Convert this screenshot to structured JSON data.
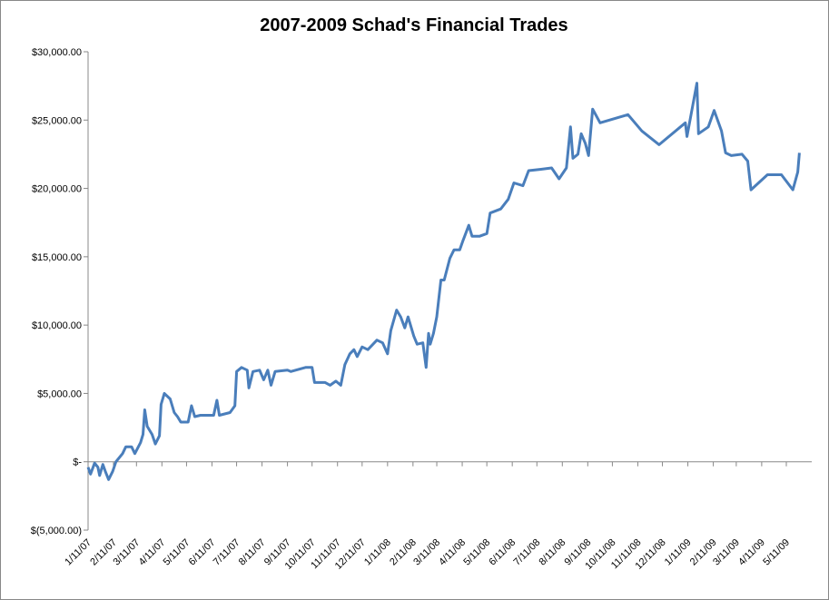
{
  "chart_data": {
    "type": "line",
    "title": "2007-2009 Schad's Financial Trades",
    "xlim": [
      "1/11/07",
      "6/11/09"
    ],
    "xticks": [
      "1/11/07",
      "2/11/07",
      "3/11/07",
      "4/11/07",
      "5/11/07",
      "6/11/07",
      "7/11/07",
      "8/11/07",
      "9/11/07",
      "10/11/07",
      "11/11/07",
      "12/11/07",
      "1/11/08",
      "2/11/08",
      "3/11/08",
      "4/11/08",
      "5/11/08",
      "6/11/08",
      "7/11/08",
      "8/11/08",
      "9/11/08",
      "10/11/08",
      "11/11/08",
      "12/11/08",
      "1/11/09",
      "2/11/09",
      "3/11/09",
      "4/11/09",
      "5/11/09"
    ],
    "ylim": [
      -5000,
      30000
    ],
    "yticks": [
      {
        "value": -5000,
        "label": "$(5,000.00)"
      },
      {
        "value": 0,
        "label": "$-"
      },
      {
        "value": 5000,
        "label": "$5,000.00"
      },
      {
        "value": 10000,
        "label": "$10,000.00"
      },
      {
        "value": 15000,
        "label": "$15,000.00"
      },
      {
        "value": 20000,
        "label": "$20,000.00"
      },
      {
        "value": 25000,
        "label": "$25,000.00"
      },
      {
        "value": 30000,
        "label": "$30,000.00"
      }
    ],
    "grid": false,
    "series": [
      {
        "color": "#4a7ebb",
        "x": [
          "1/11/07",
          "1/14/07",
          "1/19/07",
          "1/23/07",
          "1/25/07",
          "1/29/07",
          "2/1/07",
          "2/5/07",
          "2/10/07",
          "2/14/07",
          "2/22/07",
          "2/26/07",
          "3/5/07",
          "3/9/07",
          "3/16/07",
          "3/19/07",
          "3/21/07",
          "3/24/07",
          "3/30/07",
          "4/3/07",
          "4/8/07",
          "4/10/07",
          "4/14/07",
          "4/21/07",
          "4/26/07",
          "4/30/07",
          "5/4/07",
          "5/13/07",
          "5/17/07",
          "5/21/07",
          "5/28/07",
          "6/13/07",
          "6/17/07",
          "6/20/07",
          "7/3/07",
          "7/9/07",
          "7/11/07",
          "7/17/07",
          "7/24/07",
          "7/26/07",
          "7/31/07",
          "8/8/07",
          "8/13/07",
          "8/18/07",
          "8/22/07",
          "8/27/07",
          "9/11/07",
          "9/15/07",
          "10/3/07",
          "10/11/07",
          "10/14/07",
          "10/27/07",
          "11/2/07",
          "11/9/07",
          "11/15/07",
          "11/20/07",
          "11/26/07",
          "12/1/07",
          "12/5/07",
          "12/11/07",
          "12/18/07",
          "12/29/07",
          "1/5/08",
          "1/11/08",
          "1/15/08",
          "1/22/08",
          "1/27/08",
          "2/1/08",
          "2/5/08",
          "2/12/08",
          "2/16/08",
          "2/23/08",
          "2/27/08",
          "3/1/08",
          "3/3/08",
          "3/7/08",
          "3/11/08",
          "3/16/08",
          "3/20/08",
          "3/27/08",
          "4/1/08",
          "4/8/08",
          "4/12/08",
          "4/19/08",
          "4/23/08",
          "5/2/08",
          "5/11/08",
          "5/15/08",
          "5/28/08",
          "6/6/08",
          "6/13/08",
          "6/24/08",
          "7/1/08",
          "7/16/08",
          "7/29/08",
          "8/7/08",
          "8/16/08",
          "8/21/08",
          "8/24/08",
          "8/30/08",
          "9/3/08",
          "9/8/08",
          "9/12/08",
          "9/17/08",
          "9/26/08",
          "10/30/08",
          "11/16/08",
          "12/7/08",
          "1/8/09",
          "1/10/09",
          "1/22/09",
          "1/24/09",
          "2/5/09",
          "2/12/09",
          "2/21/09",
          "2/26/09",
          "3/5/09",
          "3/18/09",
          "3/25/09",
          "3/29/09",
          "4/18/09",
          "5/5/09",
          "5/19/09",
          "5/25/09",
          "5/27/09"
        ],
        "values": [
          -400,
          -900,
          -100,
          -400,
          -1000,
          -200,
          -700,
          -1300,
          -700,
          0,
          600,
          1100,
          1100,
          600,
          1400,
          2000,
          3800,
          2600,
          2000,
          1300,
          1900,
          4200,
          5000,
          4600,
          3600,
          3300,
          2900,
          2900,
          4100,
          3300,
          3400,
          3400,
          4500,
          3400,
          3600,
          4100,
          6600,
          6900,
          6700,
          5400,
          6600,
          6700,
          6000,
          6700,
          5600,
          6600,
          6700,
          6600,
          6900,
          6900,
          5800,
          5800,
          5600,
          5900,
          5600,
          7100,
          7900,
          8200,
          7700,
          8400,
          8200,
          8900,
          8700,
          7900,
          9600,
          11100,
          10600,
          9800,
          10600,
          9200,
          8600,
          8700,
          6900,
          9400,
          8600,
          9400,
          10600,
          13300,
          13300,
          14900,
          15500,
          15500,
          16200,
          17300,
          16500,
          16500,
          16700,
          18200,
          18500,
          19200,
          20400,
          20200,
          21300,
          21400,
          21500,
          20700,
          21500,
          24500,
          22200,
          22500,
          24000,
          23300,
          22400,
          25800,
          24800,
          25400,
          24200,
          23200,
          24800,
          23800,
          27700,
          24000,
          24500,
          25700,
          24200,
          22600,
          22400,
          22500,
          22000,
          19900,
          21000,
          21000,
          19900,
          21200,
          22600
        ]
      }
    ]
  }
}
